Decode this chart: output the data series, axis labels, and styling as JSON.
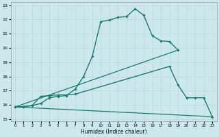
{
  "xlabel": "Humidex (Indice chaleur)",
  "bg_color": "#cce8ec",
  "grid_color": "#b8d8dc",
  "line_color": "#1a7a6e",
  "xlim": [
    -0.5,
    23.5
  ],
  "ylim": [
    14.85,
    23.2
  ],
  "xticks": [
    0,
    1,
    2,
    3,
    4,
    5,
    6,
    7,
    8,
    9,
    10,
    11,
    12,
    13,
    14,
    15,
    16,
    17,
    18,
    19,
    20,
    21,
    22,
    23
  ],
  "yticks": [
    15,
    16,
    17,
    18,
    19,
    20,
    21,
    22,
    23
  ],
  "line1_x": [
    0,
    1,
    2,
    3,
    4,
    5,
    6,
    7,
    8,
    9,
    10,
    11,
    12,
    13,
    14,
    15,
    16,
    17,
    18,
    19
  ],
  "line1_y": [
    15.85,
    15.88,
    15.95,
    16.1,
    16.5,
    16.6,
    16.65,
    17.1,
    18.0,
    19.4,
    21.85,
    21.95,
    22.15,
    22.2,
    22.75,
    22.3,
    20.85,
    20.5,
    20.45,
    19.85
  ],
  "line2_x": [
    0,
    1,
    2,
    3,
    4,
    5,
    6,
    7,
    18,
    19,
    20,
    21,
    22,
    23
  ],
  "line2_y": [
    15.85,
    15.88,
    15.95,
    16.6,
    16.65,
    16.7,
    16.7,
    16.75,
    18.7,
    17.4,
    16.5,
    16.5,
    16.5,
    15.15
  ],
  "line3_x": [
    0,
    19
  ],
  "line3_y": [
    15.85,
    19.85
  ],
  "line4_x": [
    0,
    22,
    23
  ],
  "line4_y": [
    15.85,
    15.2,
    15.15
  ]
}
